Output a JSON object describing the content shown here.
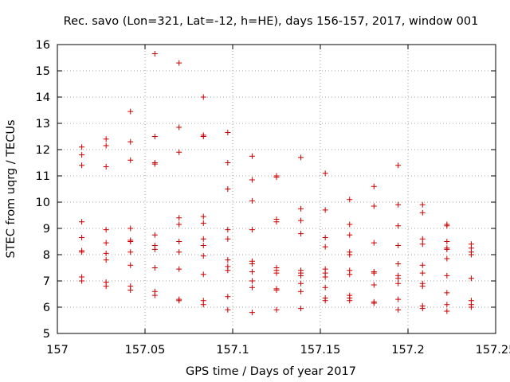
{
  "chart_data": {
    "type": "scatter",
    "title": "Rec. savo (Lon=321, Lat=-12, h=HE), days 156-157, 2017, window 001",
    "xlabel": "GPS time / Days of year 2017",
    "ylabel": "STEC from uqrg / TECUs",
    "xlim": [
      157,
      157.25
    ],
    "ylim": [
      5,
      16
    ],
    "x_ticks": [
      157,
      157.05,
      157.1,
      157.15,
      157.2,
      157.25
    ],
    "x_tick_labels": [
      "157",
      "157.05",
      "157.1",
      "157.15",
      "157.2",
      "157.25"
    ],
    "y_ticks": [
      5,
      6,
      7,
      8,
      9,
      10,
      11,
      12,
      13,
      14,
      15,
      16
    ],
    "y_tick_labels": [
      "5",
      "6",
      "7",
      "8",
      "9",
      "10",
      "11",
      "12",
      "13",
      "14",
      "15",
      "16"
    ],
    "grid": true,
    "grid_style": "dotted",
    "marker": "+",
    "marker_color": "#cc0000",
    "series": [
      {
        "points": [
          [
            157.0139,
            12.1
          ],
          [
            157.0139,
            11.8
          ],
          [
            157.0139,
            11.4
          ],
          [
            157.0139,
            9.25
          ],
          [
            157.0139,
            8.65
          ],
          [
            157.0139,
            8.15
          ],
          [
            157.0139,
            8.1
          ],
          [
            157.0139,
            7.15
          ],
          [
            157.0139,
            7.0
          ],
          [
            157.0278,
            12.4
          ],
          [
            157.0278,
            12.15
          ],
          [
            157.0278,
            11.35
          ],
          [
            157.0278,
            8.95
          ],
          [
            157.0278,
            8.45
          ],
          [
            157.0278,
            8.05
          ],
          [
            157.0278,
            7.8
          ],
          [
            157.0278,
            6.95
          ],
          [
            157.0278,
            6.8
          ],
          [
            157.0417,
            13.45
          ],
          [
            157.0417,
            12.3
          ],
          [
            157.0417,
            11.6
          ],
          [
            157.0417,
            9.0
          ],
          [
            157.0417,
            8.55
          ],
          [
            157.0417,
            8.5
          ],
          [
            157.0417,
            8.1
          ],
          [
            157.0417,
            7.6
          ],
          [
            157.0417,
            6.8
          ],
          [
            157.0417,
            6.65
          ],
          [
            157.0556,
            15.65
          ],
          [
            157.0556,
            12.5
          ],
          [
            157.0556,
            11.5
          ],
          [
            157.0556,
            11.45
          ],
          [
            157.0556,
            8.75
          ],
          [
            157.0556,
            8.35
          ],
          [
            157.0556,
            8.2
          ],
          [
            157.0556,
            7.5
          ],
          [
            157.0556,
            6.6
          ],
          [
            157.0556,
            6.45
          ],
          [
            157.0694,
            15.3
          ],
          [
            157.0694,
            12.85
          ],
          [
            157.0694,
            11.9
          ],
          [
            157.0694,
            9.4
          ],
          [
            157.0694,
            9.15
          ],
          [
            157.0694,
            8.5
          ],
          [
            157.0694,
            8.1
          ],
          [
            157.0694,
            7.45
          ],
          [
            157.0694,
            6.3
          ],
          [
            157.0694,
            6.25
          ],
          [
            157.0833,
            14.0
          ],
          [
            157.0833,
            12.55
          ],
          [
            157.0833,
            12.5
          ],
          [
            157.0833,
            9.45
          ],
          [
            157.0833,
            9.2
          ],
          [
            157.0833,
            8.6
          ],
          [
            157.0833,
            8.35
          ],
          [
            157.0833,
            7.95
          ],
          [
            157.0833,
            7.25
          ],
          [
            157.0833,
            6.25
          ],
          [
            157.0833,
            6.1
          ],
          [
            157.0972,
            12.65
          ],
          [
            157.0972,
            11.5
          ],
          [
            157.0972,
            10.5
          ],
          [
            157.0972,
            8.95
          ],
          [
            157.0972,
            8.6
          ],
          [
            157.0972,
            7.8
          ],
          [
            157.0972,
            7.55
          ],
          [
            157.0972,
            7.4
          ],
          [
            157.0972,
            6.4
          ],
          [
            157.0972,
            5.9
          ],
          [
            157.1111,
            11.75
          ],
          [
            157.1111,
            10.85
          ],
          [
            157.1111,
            10.05
          ],
          [
            157.1111,
            8.95
          ],
          [
            157.1111,
            7.75
          ],
          [
            157.1111,
            7.65
          ],
          [
            157.1111,
            7.35
          ],
          [
            157.1111,
            7.0
          ],
          [
            157.1111,
            6.75
          ],
          [
            157.1111,
            5.8
          ],
          [
            157.125,
            11.0
          ],
          [
            157.125,
            10.95
          ],
          [
            157.125,
            9.35
          ],
          [
            157.125,
            9.25
          ],
          [
            157.125,
            7.5
          ],
          [
            157.125,
            7.4
          ],
          [
            157.125,
            7.3
          ],
          [
            157.125,
            6.7
          ],
          [
            157.125,
            6.65
          ],
          [
            157.125,
            5.9
          ],
          [
            157.1389,
            11.7
          ],
          [
            157.1389,
            9.75
          ],
          [
            157.1389,
            9.3
          ],
          [
            157.1389,
            8.8
          ],
          [
            157.1389,
            7.4
          ],
          [
            157.1389,
            7.3
          ],
          [
            157.1389,
            7.2
          ],
          [
            157.1389,
            6.9
          ],
          [
            157.1389,
            6.6
          ],
          [
            157.1389,
            5.95
          ],
          [
            157.1528,
            11.1
          ],
          [
            157.1528,
            9.7
          ],
          [
            157.1528,
            8.65
          ],
          [
            157.1528,
            8.3
          ],
          [
            157.1528,
            7.45
          ],
          [
            157.1528,
            7.3
          ],
          [
            157.1528,
            7.15
          ],
          [
            157.1528,
            6.75
          ],
          [
            157.1528,
            6.35
          ],
          [
            157.1528,
            6.25
          ],
          [
            157.1667,
            10.1
          ],
          [
            157.1667,
            9.15
          ],
          [
            157.1667,
            8.75
          ],
          [
            157.1667,
            8.1
          ],
          [
            157.1667,
            8.0
          ],
          [
            157.1667,
            7.4
          ],
          [
            157.1667,
            7.25
          ],
          [
            157.1667,
            6.45
          ],
          [
            157.1667,
            6.35
          ],
          [
            157.1667,
            6.25
          ],
          [
            157.1806,
            10.6
          ],
          [
            157.1806,
            9.85
          ],
          [
            157.1806,
            8.45
          ],
          [
            157.1806,
            7.35
          ],
          [
            157.1806,
            7.3
          ],
          [
            157.1806,
            6.85
          ],
          [
            157.1806,
            6.2
          ],
          [
            157.1806,
            6.15
          ],
          [
            157.1944,
            11.4
          ],
          [
            157.1944,
            9.9
          ],
          [
            157.1944,
            9.1
          ],
          [
            157.1944,
            8.35
          ],
          [
            157.1944,
            7.65
          ],
          [
            157.1944,
            7.2
          ],
          [
            157.1944,
            7.1
          ],
          [
            157.1944,
            6.9
          ],
          [
            157.1944,
            6.3
          ],
          [
            157.1944,
            5.9
          ],
          [
            157.2083,
            9.9
          ],
          [
            157.2083,
            9.6
          ],
          [
            157.2083,
            8.6
          ],
          [
            157.2083,
            8.4
          ],
          [
            157.2083,
            7.6
          ],
          [
            157.2083,
            7.3
          ],
          [
            157.2083,
            6.9
          ],
          [
            157.2083,
            6.8
          ],
          [
            157.2083,
            6.05
          ],
          [
            157.2083,
            5.95
          ],
          [
            157.2222,
            9.15
          ],
          [
            157.2222,
            9.1
          ],
          [
            157.2222,
            8.5
          ],
          [
            157.2222,
            8.25
          ],
          [
            157.2222,
            8.2
          ],
          [
            157.2222,
            7.85
          ],
          [
            157.2222,
            7.2
          ],
          [
            157.2222,
            6.55
          ],
          [
            157.2222,
            6.1
          ],
          [
            157.2222,
            5.85
          ],
          [
            157.2361,
            8.4
          ],
          [
            157.2361,
            8.25
          ],
          [
            157.2361,
            8.1
          ],
          [
            157.2361,
            8.0
          ],
          [
            157.2361,
            7.1
          ],
          [
            157.2361,
            6.25
          ],
          [
            157.2361,
            6.1
          ],
          [
            157.2361,
            6.0
          ]
        ]
      }
    ]
  }
}
